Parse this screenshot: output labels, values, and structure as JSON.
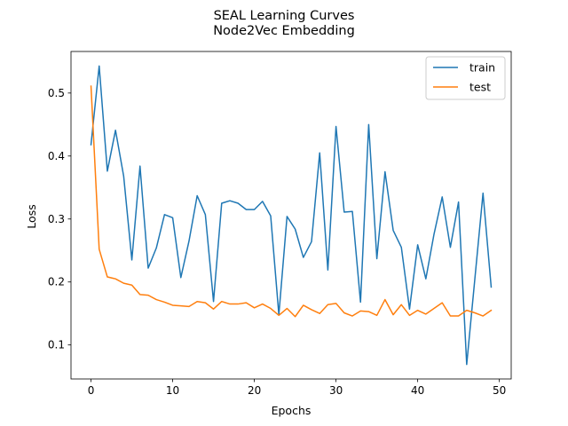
{
  "chart_data": {
    "type": "line",
    "title": "SEAL Learning Curves",
    "subtitle": "Node2Vec Embedding",
    "xlabel": "Epochs",
    "ylabel": "Loss",
    "xlim": [
      -2.45,
      51.45
    ],
    "ylim": [
      0.046,
      0.566
    ],
    "xticks": [
      0,
      10,
      20,
      30,
      40,
      50
    ],
    "yticks": [
      0.1,
      0.2,
      0.3,
      0.4,
      0.5
    ],
    "xtick_labels": [
      "0",
      "10",
      "20",
      "30",
      "40",
      "50"
    ],
    "ytick_labels": [
      "0.1",
      "0.2",
      "0.3",
      "0.4",
      "0.5"
    ],
    "grid": false,
    "legend_position": "top-right",
    "x": [
      0,
      1,
      2,
      3,
      4,
      5,
      6,
      7,
      8,
      9,
      10,
      11,
      12,
      13,
      14,
      15,
      16,
      17,
      18,
      19,
      20,
      21,
      22,
      23,
      24,
      25,
      26,
      27,
      28,
      29,
      30,
      31,
      32,
      33,
      34,
      35,
      36,
      37,
      38,
      39,
      40,
      41,
      42,
      43,
      44,
      45,
      46,
      47,
      48,
      49
    ],
    "series": [
      {
        "name": "train",
        "color": "#1f77b4",
        "values": [
          0.418,
          0.543,
          0.376,
          0.441,
          0.368,
          0.235,
          0.384,
          0.222,
          0.254,
          0.307,
          0.302,
          0.207,
          0.265,
          0.337,
          0.307,
          0.169,
          0.325,
          0.329,
          0.325,
          0.315,
          0.315,
          0.328,
          0.305,
          0.148,
          0.304,
          0.284,
          0.239,
          0.264,
          0.405,
          0.219,
          0.447,
          0.311,
          0.312,
          0.168,
          0.45,
          0.237,
          0.375,
          0.282,
          0.255,
          0.157,
          0.259,
          0.205,
          0.276,
          0.335,
          0.255,
          0.327,
          0.069,
          0.205,
          0.341,
          0.192
        ]
      },
      {
        "name": "test",
        "color": "#ff7f0e",
        "values": [
          0.511,
          0.252,
          0.208,
          0.205,
          0.198,
          0.195,
          0.18,
          0.179,
          0.172,
          0.168,
          0.163,
          0.162,
          0.161,
          0.169,
          0.167,
          0.157,
          0.169,
          0.165,
          0.165,
          0.167,
          0.159,
          0.165,
          0.158,
          0.147,
          0.158,
          0.145,
          0.163,
          0.156,
          0.15,
          0.164,
          0.166,
          0.151,
          0.146,
          0.154,
          0.153,
          0.147,
          0.172,
          0.148,
          0.164,
          0.147,
          0.155,
          0.149,
          0.158,
          0.167,
          0.146,
          0.146,
          0.155,
          0.151,
          0.146,
          0.155
        ]
      }
    ]
  }
}
